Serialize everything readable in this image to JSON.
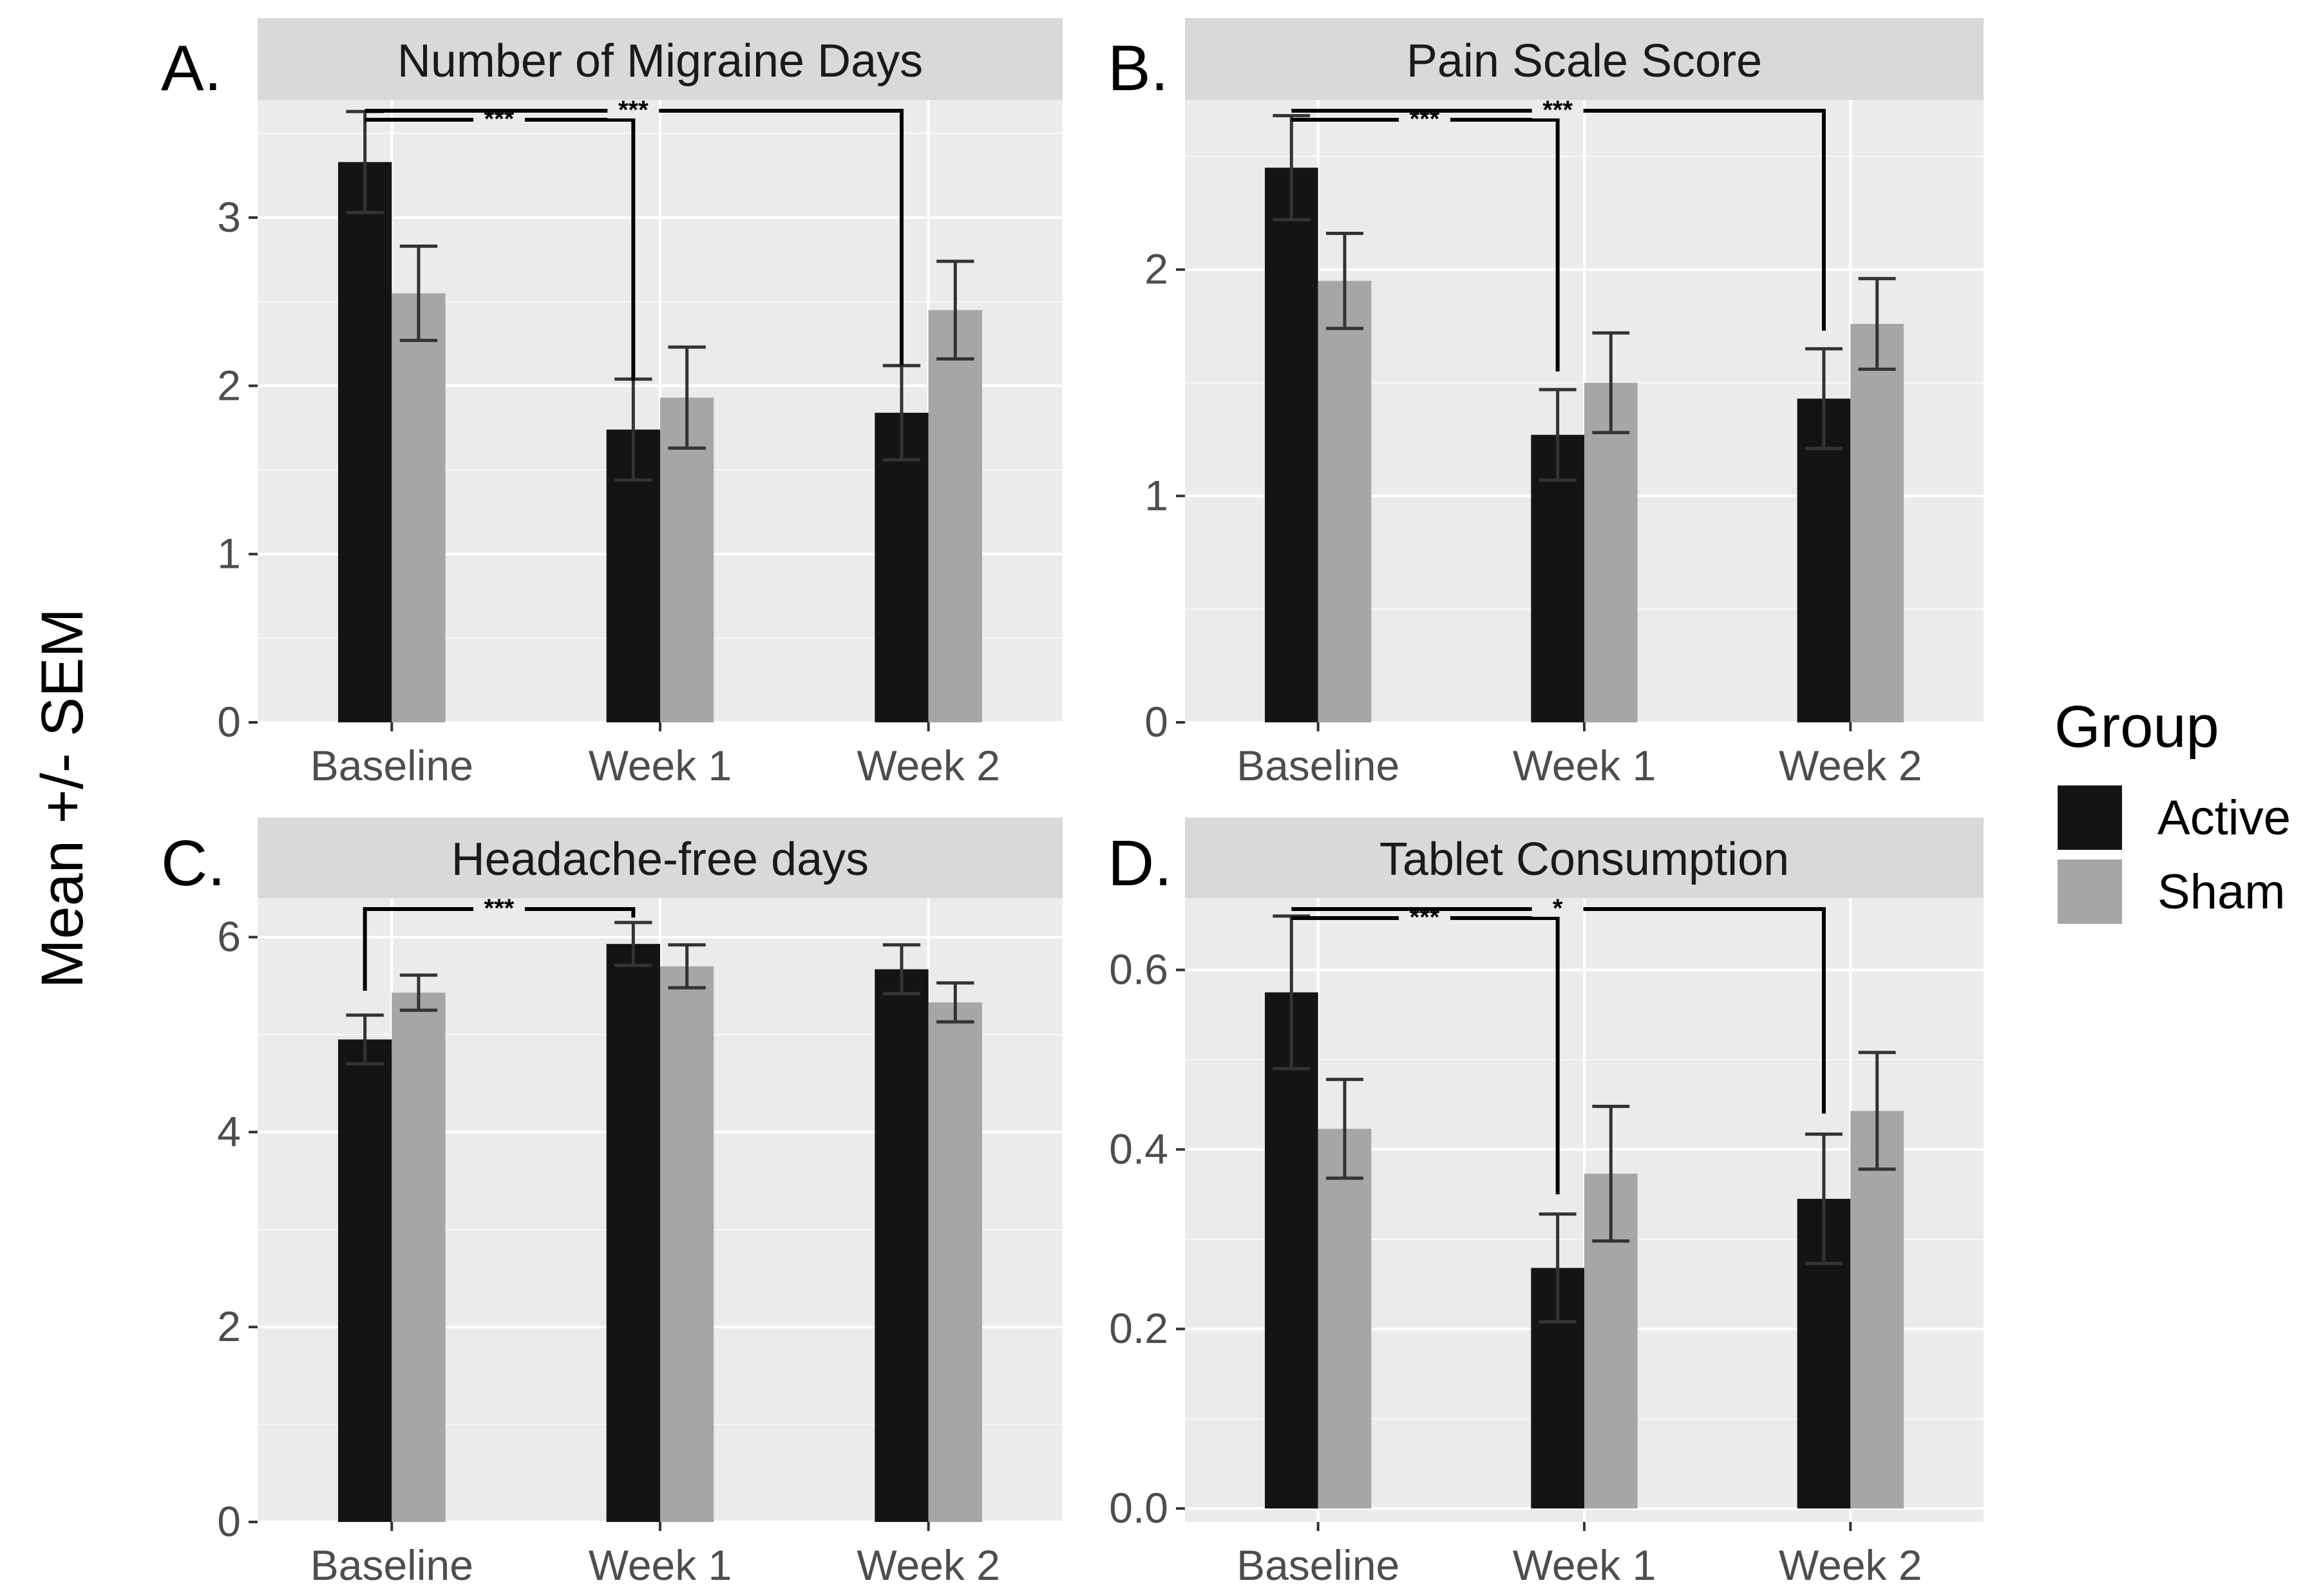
{
  "ylabel": "Mean +/- SEM",
  "legend": {
    "title": "Group",
    "items": [
      {
        "label": "Active",
        "color": "#141414"
      },
      {
        "label": "Sham",
        "color": "#a6a6a6"
      }
    ]
  },
  "chart_data": [
    {
      "letter": "A.",
      "type": "bar",
      "title": "Number of Migraine Days",
      "categories": [
        "Baseline",
        "Week 1",
        "Week 2"
      ],
      "ylim": [
        0,
        3.7
      ],
      "yticks": [
        0,
        1,
        2,
        3
      ],
      "yticklabels": [
        "0",
        "1",
        "2",
        "3"
      ],
      "series": [
        {
          "name": "Active",
          "values": [
            3.33,
            1.74,
            1.84
          ],
          "err": [
            0.3,
            0.3,
            0.28
          ]
        },
        {
          "name": "Sham",
          "values": [
            2.55,
            1.93,
            2.45
          ],
          "err": [
            0.28,
            0.3,
            0.29
          ]
        }
      ],
      "comparisons": [
        {
          "from": 0,
          "to": 1,
          "label": "***",
          "level": 1,
          "drop": 2.03
        },
        {
          "from": 0,
          "to": 2,
          "label": "***",
          "level": 0,
          "drop": 2.12
        }
      ]
    },
    {
      "letter": "B.",
      "type": "bar",
      "title": "Pain Scale Score",
      "categories": [
        "Baseline",
        "Week 1",
        "Week 2"
      ],
      "ylim": [
        0,
        2.75
      ],
      "yticks": [
        0,
        1,
        2
      ],
      "yticklabels": [
        "0",
        "1",
        "2"
      ],
      "series": [
        {
          "name": "Active",
          "values": [
            2.45,
            1.27,
            1.43
          ],
          "err": [
            0.23,
            0.2,
            0.22
          ]
        },
        {
          "name": "Sham",
          "values": [
            1.95,
            1.5,
            1.76
          ],
          "err": [
            0.21,
            0.22,
            0.2
          ]
        }
      ],
      "comparisons": [
        {
          "from": 0,
          "to": 1,
          "label": "***",
          "level": 1,
          "drop": 1.55
        },
        {
          "from": 0,
          "to": 2,
          "label": "***",
          "level": 0,
          "drop": 1.73
        }
      ]
    },
    {
      "letter": "C.",
      "type": "bar",
      "title": "Headache-free days",
      "categories": [
        "Baseline",
        "Week 1",
        "Week 2"
      ],
      "ylim": [
        0,
        6.4
      ],
      "yticks": [
        0,
        2,
        4,
        6
      ],
      "yticklabels": [
        "0",
        "2",
        "4",
        "6"
      ],
      "series": [
        {
          "name": "Active",
          "values": [
            4.95,
            5.93,
            5.67
          ],
          "err": [
            0.25,
            0.22,
            0.25
          ]
        },
        {
          "name": "Sham",
          "values": [
            5.43,
            5.7,
            5.33
          ],
          "err": [
            0.18,
            0.22,
            0.2
          ]
        }
      ],
      "comparisons": [
        {
          "from": 0,
          "to": 1,
          "label": "***",
          "level": 0,
          "dropFrom": 5.45,
          "dropTo": 6.2
        }
      ]
    },
    {
      "letter": "D.",
      "type": "bar",
      "title": "Tablet Consumption",
      "categories": [
        "Baseline",
        "Week 1",
        "Week 2"
      ],
      "ylim": [
        -0.015,
        0.68
      ],
      "yticks": [
        0,
        0.2,
        0.4,
        0.6
      ],
      "yticklabels": [
        "0.0",
        "0.2",
        "0.4",
        "0.6"
      ],
      "series": [
        {
          "name": "Active",
          "values": [
            0.575,
            0.268,
            0.345
          ],
          "err": [
            0.085,
            0.06,
            0.072
          ]
        },
        {
          "name": "Sham",
          "values": [
            0.423,
            0.373,
            0.443
          ],
          "err": [
            0.055,
            0.075,
            0.065
          ]
        }
      ],
      "comparisons": [
        {
          "from": 0,
          "to": 1,
          "label": "***",
          "level": 1,
          "drop": 0.35
        },
        {
          "from": 0,
          "to": 2,
          "label": "*",
          "level": 0,
          "drop": 0.44
        }
      ]
    }
  ]
}
